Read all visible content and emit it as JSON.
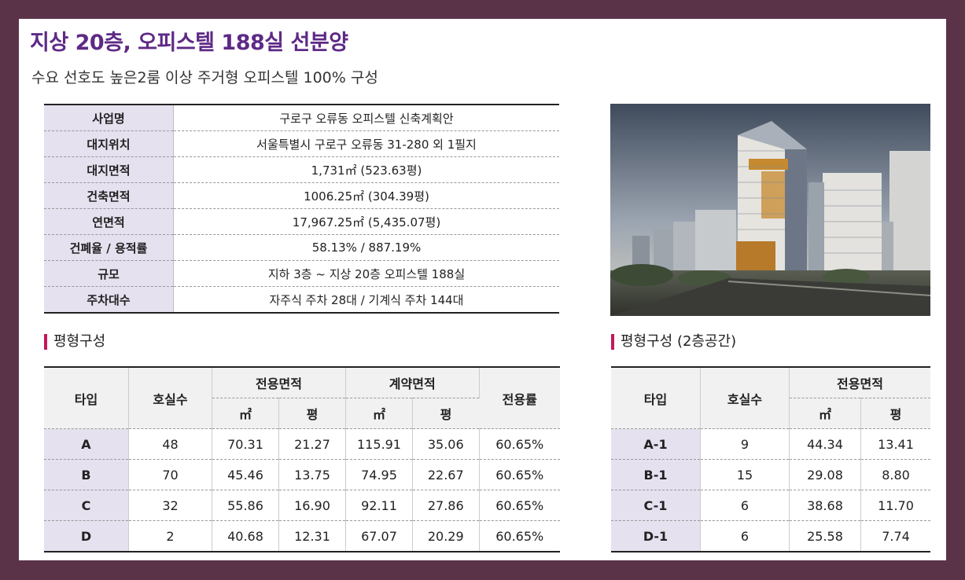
{
  "header": {
    "title": "지상 20층, 오피스텔 188실 선분양",
    "subtitle": "수요 선호도 높은2룸 이상 주거형 오피스텔 100% 구성"
  },
  "info": [
    {
      "label": "사업명",
      "value": "구로구 오류동 오피스텔 신축계획안"
    },
    {
      "label": "대지위치",
      "value": "서울특별시 구로구 오류동 31-280 외 1필지"
    },
    {
      "label": "대지면적",
      "value": "1,731㎡ (523.63평)"
    },
    {
      "label": "건축면적",
      "value": "1006.25㎡ (304.39평)"
    },
    {
      "label": "연면적",
      "value": "17,967.25㎡ (5,435.07평)"
    },
    {
      "label": "건폐율 / 용적률",
      "value": "58.13% / 887.19%"
    },
    {
      "label": "규모",
      "value": "지하 3층 ~ 지상 20층 오피스텔 188실"
    },
    {
      "label": "주차대수",
      "value": "자주식 주차 28대 / 기계식 주차 144대"
    }
  ],
  "section1": {
    "title": "평형구성",
    "headers": {
      "type": "타입",
      "units": "호실수",
      "exclusive": "전용면적",
      "contract": "계약면적",
      "ratio": "전용률",
      "sqm": "㎡",
      "pyeong": "평"
    },
    "rows": [
      {
        "type": "A",
        "units": "48",
        "ex_sqm": "70.31",
        "ex_py": "21.27",
        "ct_sqm": "115.91",
        "ct_py": "35.06",
        "ratio": "60.65%"
      },
      {
        "type": "B",
        "units": "70",
        "ex_sqm": "45.46",
        "ex_py": "13.75",
        "ct_sqm": "74.95",
        "ct_py": "22.67",
        "ratio": "60.65%"
      },
      {
        "type": "C",
        "units": "32",
        "ex_sqm": "55.86",
        "ex_py": "16.90",
        "ct_sqm": "92.11",
        "ct_py": "27.86",
        "ratio": "60.65%"
      },
      {
        "type": "D",
        "units": "2",
        "ex_sqm": "40.68",
        "ex_py": "12.31",
        "ct_sqm": "67.07",
        "ct_py": "20.29",
        "ratio": "60.65%"
      }
    ]
  },
  "section2": {
    "title": "평형구성 (2층공간)",
    "headers": {
      "type": "타입",
      "units": "호실수",
      "exclusive": "전용면적",
      "sqm": "㎡",
      "pyeong": "평"
    },
    "rows": [
      {
        "type": "A-1",
        "units": "9",
        "ex_sqm": "44.34",
        "ex_py": "13.41"
      },
      {
        "type": "B-1",
        "units": "15",
        "ex_sqm": "29.08",
        "ex_py": "8.80"
      },
      {
        "type": "C-1",
        "units": "6",
        "ex_sqm": "38.68",
        "ex_py": "11.70"
      },
      {
        "type": "D-1",
        "units": "6",
        "ex_sqm": "25.58",
        "ex_py": "7.74"
      }
    ]
  },
  "image": {
    "subject": "building-rendering"
  }
}
